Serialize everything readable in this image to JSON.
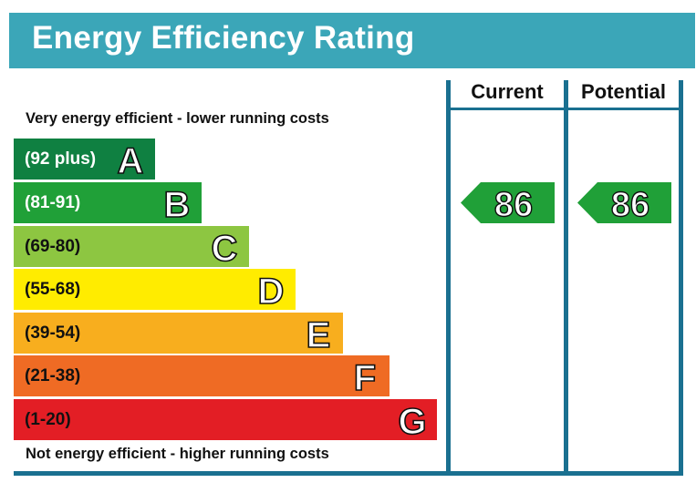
{
  "title": "Energy Efficiency Rating",
  "columns": {
    "current_label": "Current",
    "potential_label": "Potential"
  },
  "captions": {
    "top": "Very energy efficient - lower running costs",
    "bottom": "Not energy efficient - higher running costs"
  },
  "bands": [
    {
      "letter": "A",
      "range": "(92 plus)",
      "color": "#0f8041",
      "text_color": "#ffffff"
    },
    {
      "letter": "B",
      "range": "(81-91)",
      "color": "#20a038",
      "text_color": "#ffffff"
    },
    {
      "letter": "C",
      "range": "(69-80)",
      "color": "#8dc641",
      "text_color": "#111111"
    },
    {
      "letter": "D",
      "range": "(55-68)",
      "color": "#ffec00",
      "text_color": "#111111"
    },
    {
      "letter": "E",
      "range": "(39-54)",
      "color": "#f8ae1e",
      "text_color": "#111111"
    },
    {
      "letter": "F",
      "range": "(21-38)",
      "color": "#ef6b24",
      "text_color": "#111111"
    },
    {
      "letter": "G",
      "range": "(1-20)",
      "color": "#e31e25",
      "text_color": "#111111"
    }
  ],
  "ratings": {
    "current": {
      "value": "86",
      "band": "B",
      "color": "#20a038"
    },
    "potential": {
      "value": "86",
      "band": "B",
      "color": "#20a038"
    }
  },
  "colors": {
    "header": "#3ba6b8",
    "frame": "#1a7090"
  }
}
